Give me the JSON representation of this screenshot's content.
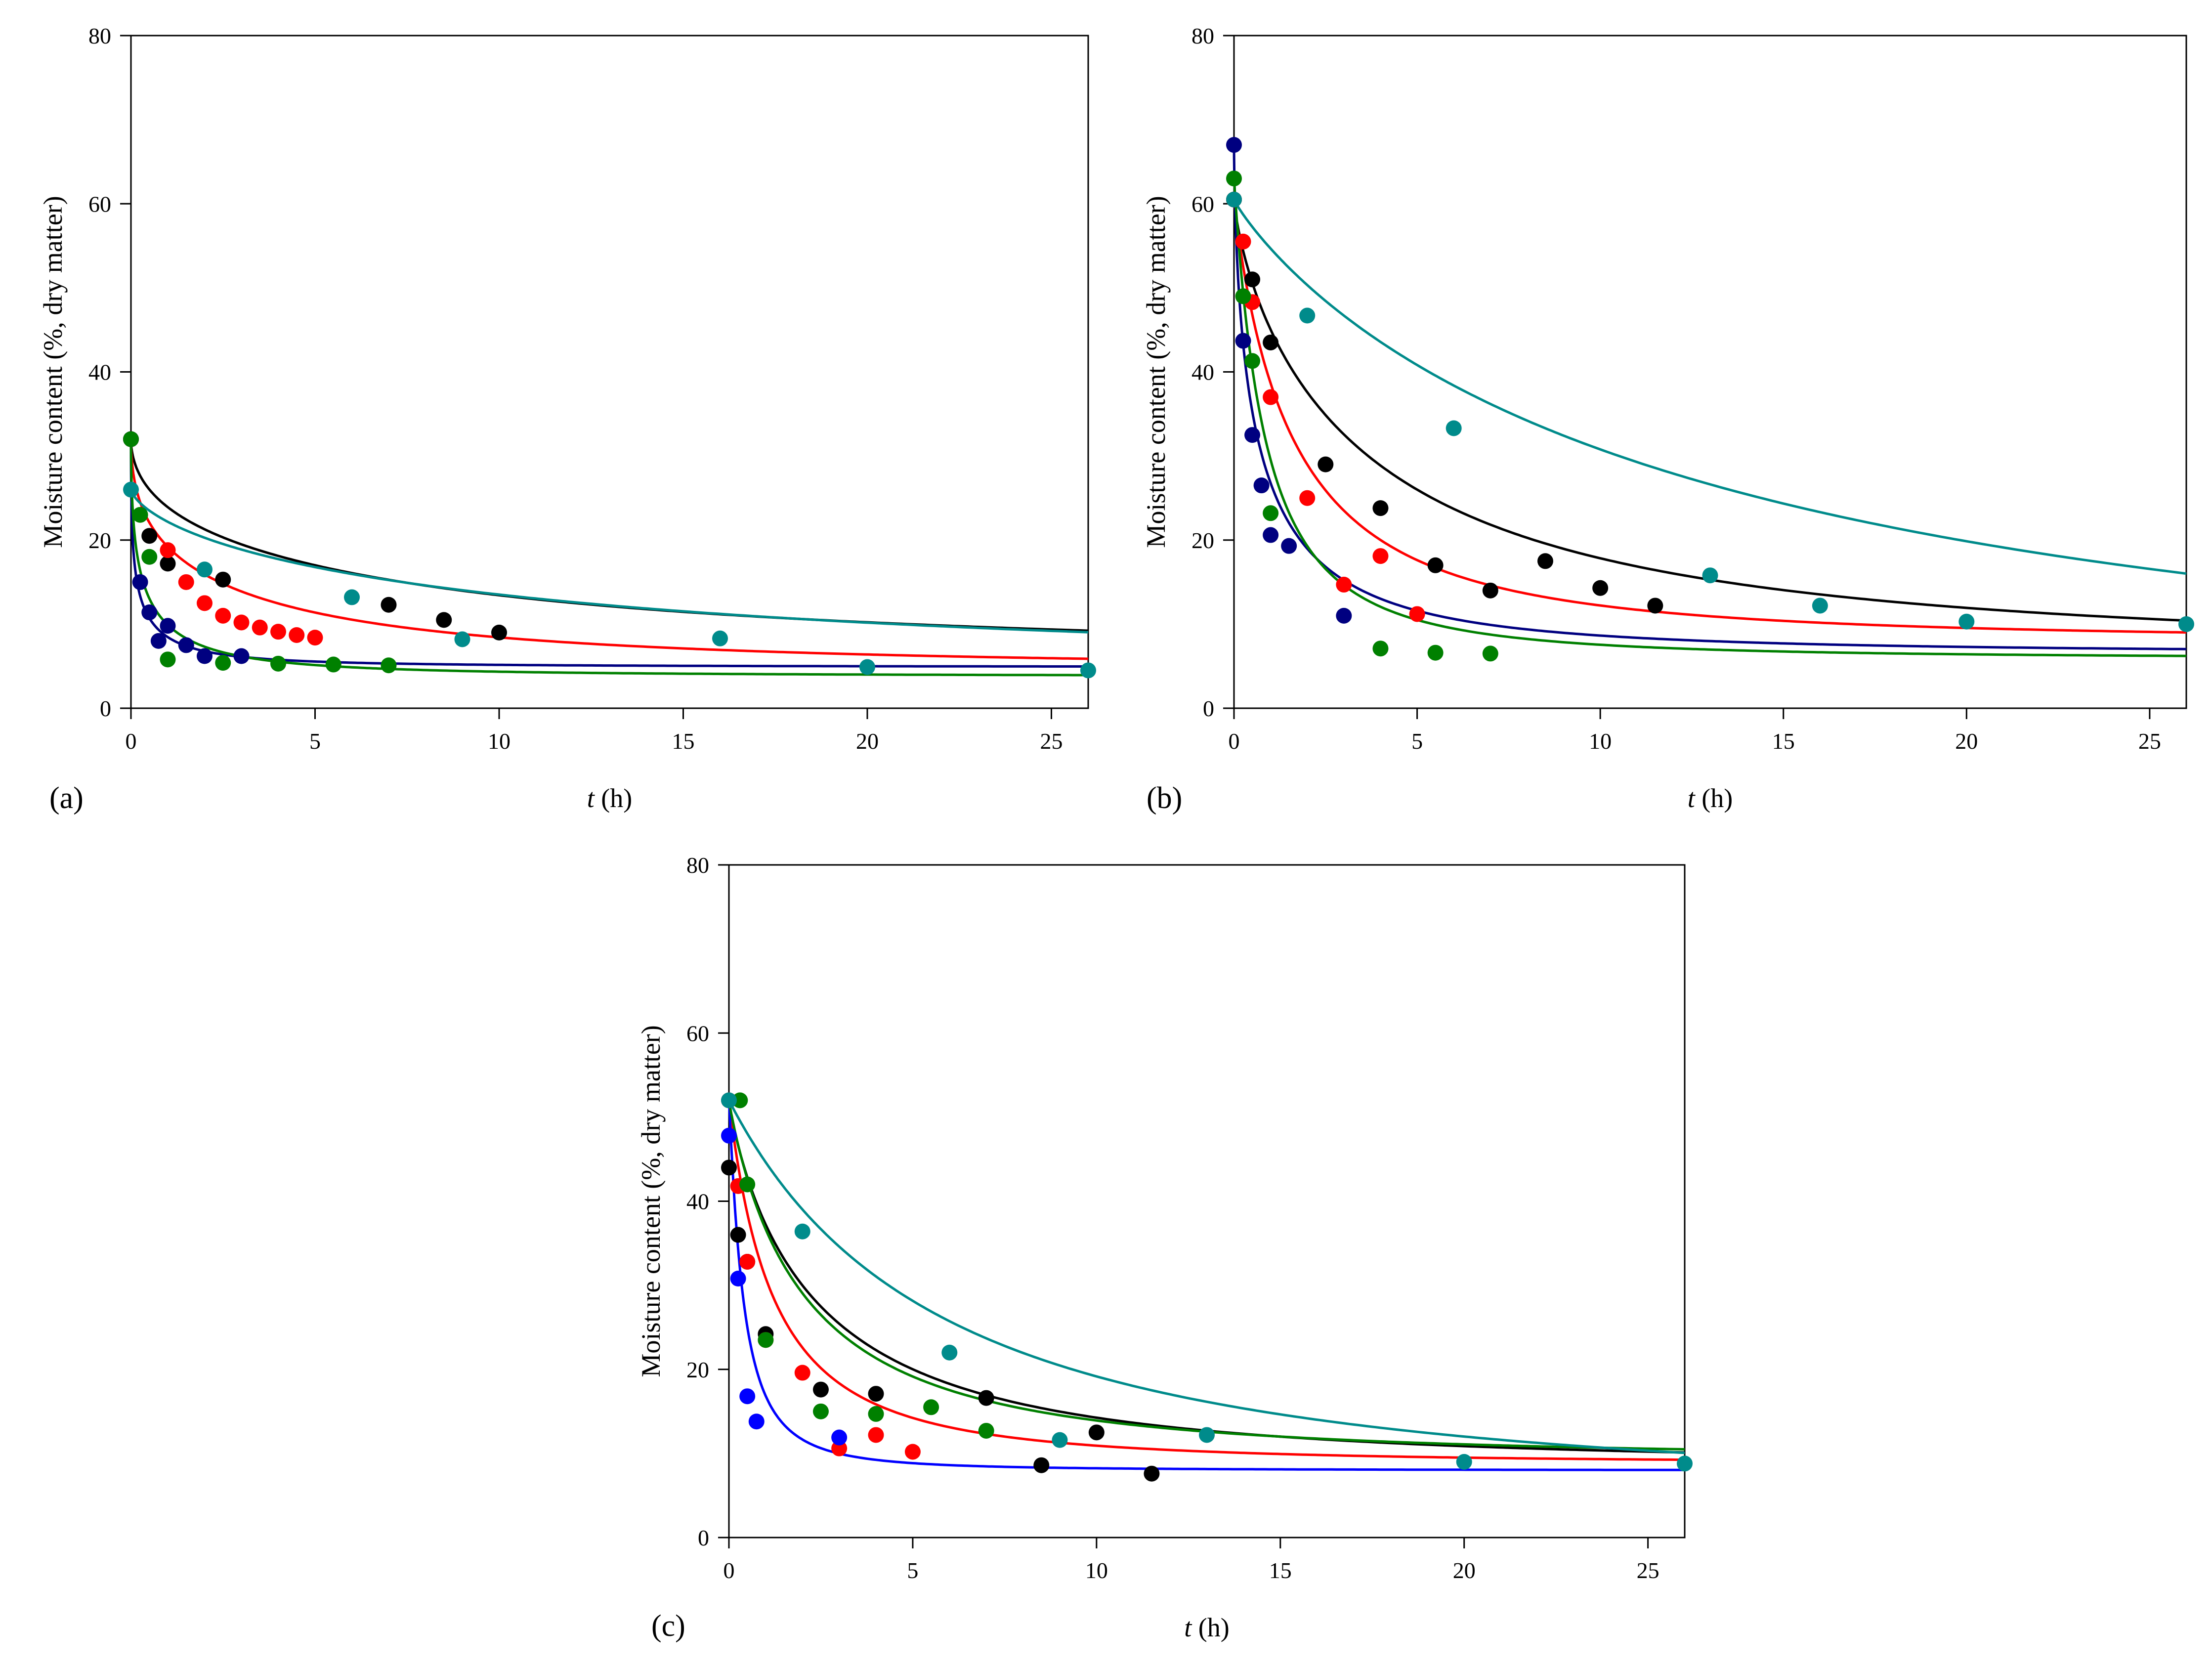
{
  "figure": {
    "y_axis_title": "Moisture content (%, dry matter)",
    "x_axis_title_italic": "t",
    "x_axis_title_unit": " (h)"
  },
  "chart_data": [
    {
      "type": "scatter",
      "panel_label": "(a)",
      "xlabel": "t (h)",
      "ylabel": "Moisture content (%, dry matter)",
      "xlim": [
        0,
        26
      ],
      "ylim": [
        0,
        80
      ],
      "xticks": [
        0,
        5,
        10,
        15,
        20,
        25
      ],
      "yticks": [
        0,
        20,
        40,
        60,
        80
      ],
      "legend": "none",
      "grid": false,
      "series": [
        {
          "name": "black",
          "color": "#000000",
          "points": [
            [
              0,
              32
            ],
            [
              0.5,
              20.5
            ],
            [
              1,
              17.2
            ],
            [
              2.5,
              15.3
            ],
            [
              7,
              12.3
            ],
            [
              8.5,
              10.5
            ],
            [
              10,
              9.0
            ]
          ],
          "curve": {
            "start": 32,
            "end": 5.8,
            "k": 0.42,
            "n": 0.55
          }
        },
        {
          "name": "red",
          "color": "#ff0000",
          "points": [
            [
              0,
              32
            ],
            [
              1,
              18.8
            ],
            [
              1.5,
              15
            ],
            [
              2,
              12.5
            ],
            [
              2.5,
              11.0
            ],
            [
              3,
              10.2
            ],
            [
              3.5,
              9.6
            ],
            [
              4,
              9.1
            ],
            [
              4.5,
              8.7
            ],
            [
              5,
              8.4
            ]
          ],
          "curve": {
            "start": 32,
            "end": 4.5,
            "k": 0.78,
            "n": 0.55
          }
        },
        {
          "name": "navy",
          "color": "#000080",
          "points": [
            [
              0,
              32
            ],
            [
              0.25,
              15
            ],
            [
              0.5,
              11.4
            ],
            [
              0.75,
              8.0
            ],
            [
              1,
              9.8
            ],
            [
              1.5,
              7.5
            ],
            [
              2,
              6.2
            ],
            [
              3,
              6.2
            ]
          ],
          "curve": {
            "start": 32,
            "end": 4.9,
            "k": 4.1,
            "n": 0.55
          }
        },
        {
          "name": "green",
          "color": "#008000",
          "points": [
            [
              0,
              32
            ],
            [
              0.25,
              23
            ],
            [
              0.5,
              18
            ],
            [
              1,
              5.8
            ],
            [
              2.5,
              5.4
            ],
            [
              4,
              5.3
            ],
            [
              5.5,
              5.2
            ],
            [
              7,
              5.1
            ]
          ],
          "curve": {
            "start": 32,
            "end": 3.8,
            "k": 2.6,
            "n": 0.6
          }
        },
        {
          "name": "teal",
          "color": "#008b8b",
          "points": [
            [
              0,
              26
            ],
            [
              2,
              16.5
            ],
            [
              6,
              13.2
            ],
            [
              9,
              8.2
            ],
            [
              16,
              8.3
            ],
            [
              20,
              4.9
            ],
            [
              26,
              4.5
            ]
          ],
          "curve": {
            "start": 26,
            "end": 4.5,
            "k": 0.21,
            "n": 0.7
          }
        }
      ]
    },
    {
      "type": "scatter",
      "panel_label": "(b)",
      "xlabel": "t (h)",
      "ylabel": "Moisture content (%, dry matter)",
      "xlim": [
        0,
        26
      ],
      "ylim": [
        0,
        80
      ],
      "xticks": [
        0,
        5,
        10,
        15,
        20,
        25
      ],
      "yticks": [
        0,
        20,
        40,
        60,
        80
      ],
      "legend": "none",
      "grid": false,
      "series": [
        {
          "name": "black",
          "color": "#000000",
          "points": [
            [
              0,
              60.5
            ],
            [
              0.5,
              51
            ],
            [
              1,
              43.5
            ],
            [
              2.5,
              29
            ],
            [
              4,
              23.8
            ],
            [
              5.5,
              17
            ],
            [
              7,
              14
            ],
            [
              8.5,
              17.5
            ],
            [
              10,
              14.3
            ],
            [
              11.5,
              12.2
            ]
          ],
          "curve": {
            "start": 60.5,
            "end": 6.5,
            "k": 0.38,
            "n": 0.8
          }
        },
        {
          "name": "red",
          "color": "#ff0000",
          "points": [
            [
              0,
              60.5
            ],
            [
              0.25,
              55.5
            ],
            [
              0.5,
              48.3
            ],
            [
              1,
              37
            ],
            [
              2,
              25
            ],
            [
              3,
              14.7
            ],
            [
              4,
              18.1
            ],
            [
              5,
              11.2
            ]
          ],
          "curve": {
            "start": 60.5,
            "end": 8,
            "k": 0.65,
            "n": 0.95
          }
        },
        {
          "name": "navy",
          "color": "#000080",
          "points": [
            [
              0,
              67
            ],
            [
              0.25,
              43.7
            ],
            [
              0.5,
              32.5
            ],
            [
              0.75,
              26.5
            ],
            [
              1,
              20.6
            ],
            [
              1.5,
              19.3
            ],
            [
              3,
              11
            ]
          ],
          "curve": {
            "start": 67,
            "end": 6.5,
            "k": 1.6,
            "n": 0.7
          }
        },
        {
          "name": "green",
          "color": "#008000",
          "points": [
            [
              0,
              63
            ],
            [
              0.25,
              49
            ],
            [
              0.5,
              41.3
            ],
            [
              1,
              23.2
            ],
            [
              4,
              7.1
            ],
            [
              5.5,
              6.6
            ],
            [
              7,
              6.5
            ]
          ],
          "curve": {
            "start": 63,
            "end": 5.9,
            "k": 1.2,
            "n": 1.0
          }
        },
        {
          "name": "teal",
          "color": "#008b8b",
          "points": [
            [
              0,
              60.5
            ],
            [
              2,
              46.7
            ],
            [
              6,
              33.3
            ],
            [
              13,
              15.8
            ],
            [
              16,
              12.2
            ],
            [
              20,
              10.3
            ],
            [
              26,
              10
            ]
          ],
          "curve": {
            "start": 60.5,
            "end": 0,
            "k": 0.105,
            "n": 0.9
          }
        }
      ]
    },
    {
      "type": "scatter",
      "panel_label": "(c)",
      "xlabel": "t (h)",
      "ylabel": "Moisture content (%, dry matter)",
      "xlim": [
        0,
        26
      ],
      "ylim": [
        0,
        80
      ],
      "xticks": [
        0,
        5,
        10,
        15,
        20,
        25
      ],
      "yticks": [
        0,
        20,
        40,
        60,
        80
      ],
      "legend": "none",
      "grid": false,
      "series": [
        {
          "name": "black",
          "color": "#000000",
          "points": [
            [
              0,
              44
            ],
            [
              0.25,
              36
            ],
            [
              0.5,
              32.8
            ],
            [
              1,
              24.2
            ],
            [
              2.5,
              17.6
            ],
            [
              4,
              17.1
            ],
            [
              7,
              16.6
            ],
            [
              8.5,
              8.6
            ],
            [
              10,
              12.5
            ],
            [
              11.5,
              7.6
            ]
          ],
          "curve": {
            "start": 52,
            "end": 8.5,
            "k": 0.48,
            "n": 0.9
          }
        },
        {
          "name": "red",
          "color": "#ff0000",
          "points": [
            [
              0,
              52
            ],
            [
              0.25,
              41.8
            ],
            [
              0.5,
              32.8
            ],
            [
              1,
              23.5
            ],
            [
              2,
              19.6
            ],
            [
              3,
              10.6
            ],
            [
              4,
              12.2
            ],
            [
              5,
              10.2
            ]
          ],
          "curve": {
            "start": 52,
            "end": 8.8,
            "k": 0.85,
            "n": 1.0
          }
        },
        {
          "name": "blue",
          "color": "#0000ff",
          "points": [
            [
              0,
              47.8
            ],
            [
              0.25,
              30.8
            ],
            [
              0.5,
              16.8
            ],
            [
              0.75,
              13.8
            ],
            [
              3,
              11.9
            ]
          ],
          "curve": {
            "start": 52,
            "end": 8,
            "k": 2.8,
            "n": 1.1
          }
        },
        {
          "name": "green",
          "color": "#008000",
          "points": [
            [
              0.3,
              52
            ],
            [
              0.5,
              42
            ],
            [
              1,
              23.5
            ],
            [
              2.5,
              15
            ],
            [
              4,
              14.7
            ],
            [
              5.5,
              15.5
            ],
            [
              7,
              12.7
            ]
          ],
          "curve": {
            "start": 52,
            "end": 9.3,
            "k": 0.52,
            "n": 0.95
          }
        },
        {
          "name": "teal",
          "color": "#008b8b",
          "points": [
            [
              0,
              52
            ],
            [
              2,
              36.4
            ],
            [
              6,
              22
            ],
            [
              9,
              11.6
            ],
            [
              13,
              12.2
            ],
            [
              20,
              9
            ],
            [
              26,
              8.8
            ]
          ],
          "curve": {
            "start": 52,
            "end": 4.8,
            "k": 0.18,
            "n": 1.0
          }
        }
      ]
    }
  ]
}
